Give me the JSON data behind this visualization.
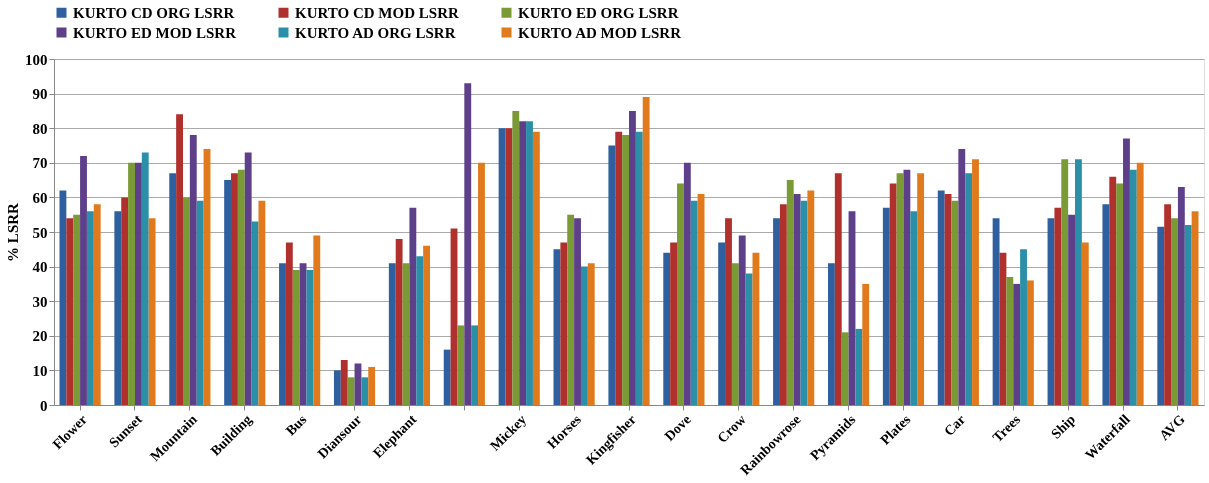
{
  "chart_data": {
    "type": "bar",
    "ylabel": "% LSRR",
    "categories": [
      "Flower",
      "Sunset",
      "Mountain",
      "Building",
      "Bus",
      "Diansour",
      "Elephant",
      null,
      "Mickey",
      "Horses",
      "Kingfisher",
      "Dove",
      "Crow",
      "Rainbowrose",
      "Pyramids",
      "Plates",
      "Car",
      "Trees",
      "Ship",
      "Waterfall",
      "AVG"
    ],
    "series": [
      {
        "name": "KURTO CD ORG LSRR",
        "color": "#2e5f9e",
        "values": [
          62,
          56,
          67,
          65,
          41,
          10,
          41,
          16,
          80,
          45,
          75,
          44,
          47,
          54,
          41,
          57,
          62,
          54,
          54,
          58,
          51.5
        ]
      },
      {
        "name": "KURTO CD MOD LSRR",
        "color": "#b0302d",
        "values": [
          54,
          60,
          84,
          67,
          47,
          13,
          48,
          51,
          80,
          47,
          79,
          47,
          54,
          58,
          67,
          64,
          61,
          44,
          57,
          66,
          58
        ]
      },
      {
        "name": "KURTO ED ORG LSRR",
        "color": "#7a9a35",
        "values": [
          55,
          70,
          60,
          68,
          39,
          8,
          41,
          23,
          85,
          55,
          78,
          64,
          41,
          65,
          21,
          67,
          59,
          37,
          71,
          64,
          54
        ]
      },
      {
        "name": "KURTO ED MOD LSRR",
        "color": "#5e3f8a",
        "values": [
          72,
          70,
          78,
          73,
          41,
          12,
          57,
          93,
          82,
          54,
          85,
          70,
          49,
          61,
          56,
          68,
          74,
          35,
          55,
          77,
          63
        ]
      },
      {
        "name": "KURTO AD ORG LSRR",
        "color": "#2b8fa8",
        "values": [
          56,
          73,
          59,
          53,
          39,
          8,
          43,
          23,
          82,
          40,
          79,
          59,
          38,
          59,
          22,
          56,
          67,
          45,
          71,
          68,
          52
        ]
      },
      {
        "name": "KURTO AD MOD LSRR",
        "color": "#e07a1c",
        "values": [
          58,
          54,
          74,
          59,
          49,
          11,
          46,
          70,
          79,
          41,
          89,
          61,
          44,
          62,
          35,
          67,
          71,
          36,
          47,
          70,
          56
        ]
      }
    ],
    "ylim": [
      0,
      100
    ],
    "yticks": [
      0,
      10,
      20,
      30,
      40,
      50,
      60,
      70,
      80,
      90,
      100
    ],
    "grid": "y",
    "legend": "top"
  }
}
